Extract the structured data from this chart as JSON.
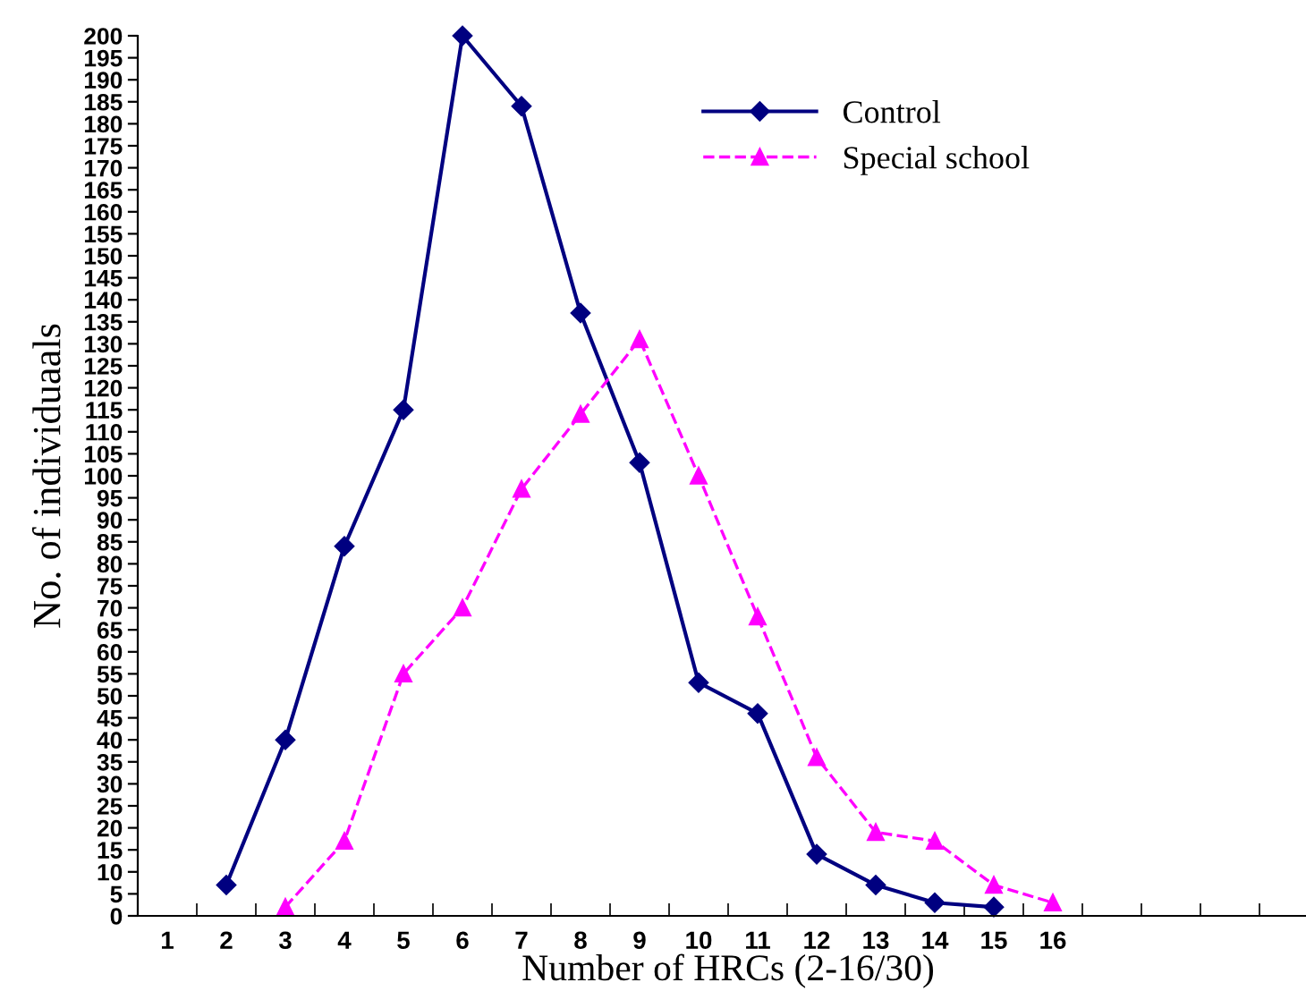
{
  "chart_data": {
    "type": "line",
    "xlabel": "Number of HRCs (2-16/30)",
    "ylabel": "No. of individuaals",
    "categories": [
      "1",
      "2",
      "3",
      "4",
      "5",
      "6",
      "7",
      "8",
      "9",
      "10",
      "11",
      "12",
      "13",
      "14",
      "15",
      "16",
      null,
      null,
      null,
      null
    ],
    "series": [
      {
        "name": "Control",
        "color": "#000080",
        "marker": "diamond",
        "line_style": "solid",
        "values": [
          null,
          7,
          40,
          84,
          115,
          200,
          184,
          137,
          103,
          53,
          46,
          14,
          7,
          3,
          2,
          null,
          null,
          null,
          null,
          null
        ]
      },
      {
        "name": "Special school",
        "color": "#ff00ff",
        "marker": "triangle",
        "line_style": "dashed",
        "values": [
          null,
          null,
          2,
          17,
          55,
          70,
          97,
          114,
          131,
          100,
          68,
          36,
          19,
          17,
          7,
          3,
          null,
          null,
          null,
          null
        ]
      }
    ],
    "ylim": [
      0,
      200
    ],
    "yticks": [
      0,
      5,
      10,
      15,
      20,
      25,
      30,
      35,
      40,
      45,
      50,
      55,
      60,
      65,
      70,
      75,
      80,
      85,
      90,
      95,
      100,
      105,
      110,
      115,
      120,
      125,
      130,
      135,
      140,
      145,
      150,
      155,
      160,
      165,
      170,
      175,
      180,
      185,
      190,
      195,
      200
    ],
    "grid": false,
    "legend": "top right"
  }
}
